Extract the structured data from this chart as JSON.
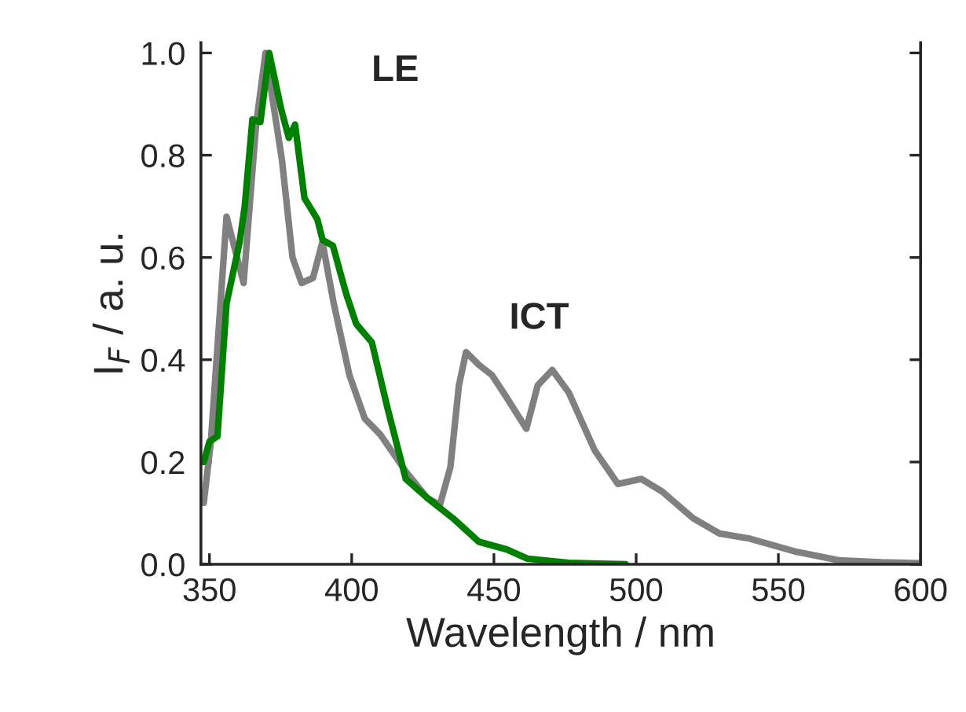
{
  "chart_data": {
    "type": "line",
    "xlabel": "Wavelength / nm",
    "ylabel": "I$_{F}$ / a. u.",
    "xlim": [
      347,
      600
    ],
    "ylim": [
      0,
      1.02
    ],
    "xticks": [
      350,
      400,
      450,
      500,
      550,
      600
    ],
    "yticks": [
      {
        "value": 0,
        "label": "0.0"
      },
      {
        "value": 0.2,
        "label": "0.2"
      },
      {
        "value": 0.4,
        "label": "0.4"
      },
      {
        "value": 0.6,
        "label": "0.6"
      },
      {
        "value": 0.8,
        "label": "0.8"
      },
      {
        "value": 1.0,
        "label": "1.0"
      }
    ],
    "grid": false,
    "legend": false,
    "series": [
      {
        "color": "#808080",
        "x": [
          348,
          350.5,
          356,
          362,
          366.4,
          369.7,
          375.5,
          379.2,
          382.4,
          386.4,
          389.7,
          393.7,
          399.2,
          404.6,
          410,
          419.2,
          426.5,
          431,
          434.7,
          437.7,
          440.2,
          444.7,
          449.3,
          454.5,
          461.4,
          465.4,
          470.5,
          476.3,
          485.4,
          493.6,
          501.8,
          509.2,
          520,
          529.3,
          540,
          556.6,
          571.2,
          586,
          600
        ],
        "values": [
          0.12,
          0.24,
          0.68,
          0.55,
          0.86,
          1.0,
          0.79,
          0.6,
          0.55,
          0.56,
          0.63,
          0.51,
          0.37,
          0.285,
          0.254,
          0.18,
          0.13,
          0.116,
          0.19,
          0.35,
          0.415,
          0.39,
          0.37,
          0.326,
          0.265,
          0.35,
          0.38,
          0.336,
          0.223,
          0.157,
          0.167,
          0.142,
          0.09,
          0.06,
          0.05,
          0.024,
          0.008,
          0.004,
          0.002
        ]
      },
      {
        "color": "#008000",
        "x": [
          348,
          350,
          352.8,
          356,
          360.6,
          362.4,
          365.1,
          367.9,
          371,
          375.2,
          377.9,
          380.1,
          383.4,
          387.9,
          389.8,
          393.4,
          398,
          401.6,
          407.1,
          412.6,
          419,
          426.5,
          435.6,
          444.7,
          454.5,
          461.8,
          476.3,
          496.4
        ],
        "values": [
          0.2,
          0.24,
          0.25,
          0.51,
          0.63,
          0.7,
          0.87,
          0.865,
          1.0,
          0.89,
          0.834,
          0.86,
          0.716,
          0.675,
          0.634,
          0.623,
          0.53,
          0.47,
          0.434,
          0.305,
          0.167,
          0.13,
          0.09,
          0.044,
          0.029,
          0.011,
          0.003,
          0.0
        ]
      }
    ],
    "annotations": [
      "LE",
      "ICT"
    ]
  }
}
